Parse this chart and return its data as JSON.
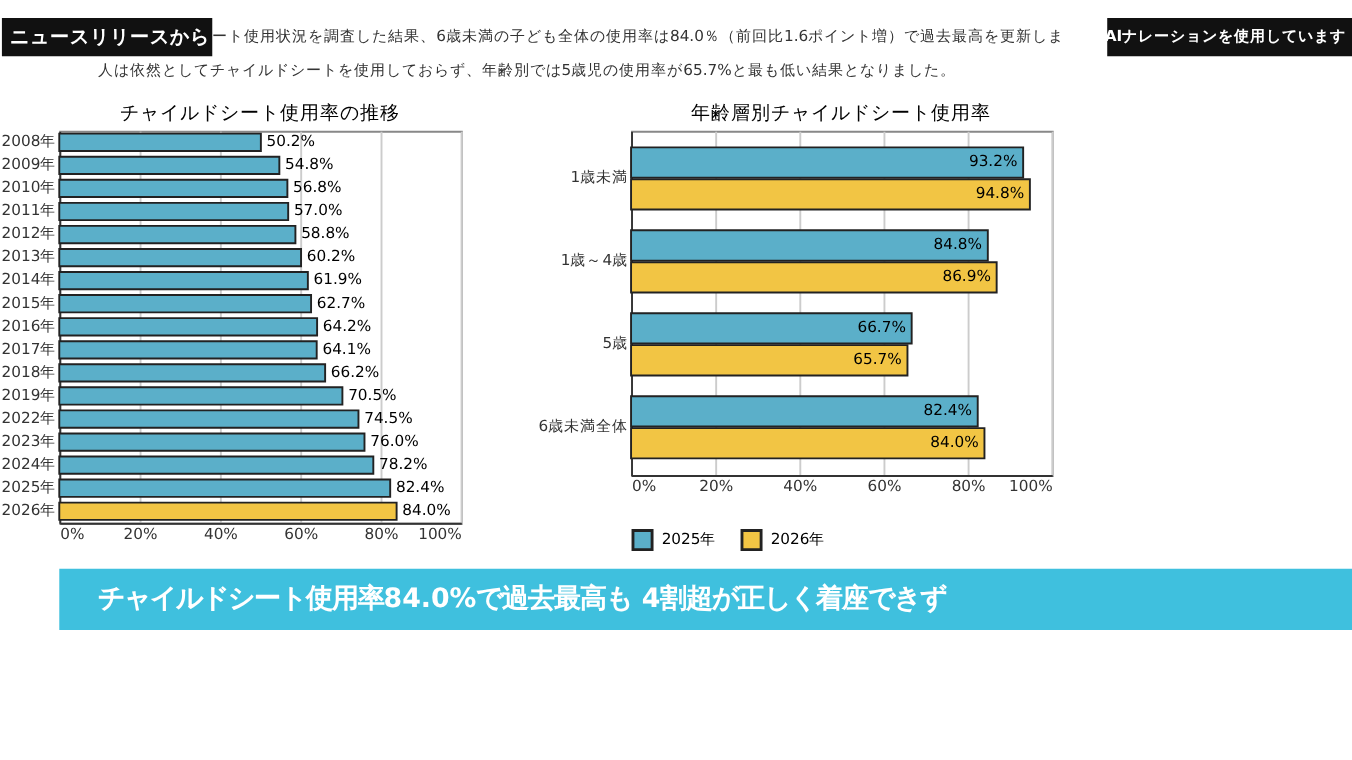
{
  "chart_data": [
    {
      "type": "bar",
      "orientation": "horizontal",
      "title": "チャイルドシート使用率の推移",
      "categories": [
        "2008年",
        "2009年",
        "2010年",
        "2011年",
        "2012年",
        "2013年",
        "2014年",
        "2015年",
        "2016年",
        "2017年",
        "2018年",
        "2019年",
        "2022年",
        "2023年",
        "2024年",
        "2025年",
        "2026年"
      ],
      "values": [
        50.2,
        54.8,
        56.8,
        57.0,
        58.8,
        60.2,
        61.9,
        62.7,
        64.2,
        64.1,
        66.2,
        70.5,
        74.5,
        76.0,
        78.2,
        82.4,
        84.0
      ],
      "colors": [
        "#5bafc9",
        "#5bafc9",
        "#5bafc9",
        "#5bafc9",
        "#5bafc9",
        "#5bafc9",
        "#5bafc9",
        "#5bafc9",
        "#5bafc9",
        "#5bafc9",
        "#5bafc9",
        "#5bafc9",
        "#5bafc9",
        "#5bafc9",
        "#5bafc9",
        "#5bafc9",
        "#f2c544"
      ],
      "value_labels": [
        "50.2%",
        "54.8%",
        "56.8%",
        "57.0%",
        "58.8%",
        "60.2%",
        "61.9%",
        "62.7%",
        "64.2%",
        "64.1%",
        "66.2%",
        "70.5%",
        "74.5%",
        "76.0%",
        "78.2%",
        "82.4%",
        "84.0%"
      ],
      "xlim": [
        0,
        100
      ],
      "xticks": [
        {
          "value": 0,
          "label": "0%"
        },
        {
          "value": 20,
          "label": "20%"
        },
        {
          "value": 40,
          "label": "40%"
        },
        {
          "value": 60,
          "label": "60%"
        },
        {
          "value": 80,
          "label": "80%"
        },
        {
          "value": 100,
          "label": "100%"
        }
      ],
      "grid": "x",
      "annotations": [
        "ニュースリリースから",
        "ート使用状況を調査した結果、6歳未満の子ども全体の使用率は84.0％（前回比1.6ポイント増）で過去最高を更新しま",
        "人は依然としてチャイルドシートを使用しておらず、年齢別では5歳児の使用率が65.7%と最も低い結果となりました。",
        "AIナレーションを使用しています",
        "チャイルドシート使用率84.0%で過去最高も  4割超が正しく着座できず"
      ]
    },
    {
      "type": "bar",
      "orientation": "horizontal",
      "title": "年齢層別チャイルドシート使用率",
      "categories": [
        "1歳未満",
        "1歳～4歳",
        "5歳",
        "6歳未満全体"
      ],
      "series": [
        {
          "name": "2025年",
          "color": "#5bafc9",
          "values": [
            93.2,
            84.8,
            66.7,
            82.4
          ],
          "value_labels": [
            "93.2%",
            "84.8%",
            "66.7%",
            "82.4%"
          ]
        },
        {
          "name": "2026年",
          "color": "#f2c544",
          "values": [
            94.8,
            86.9,
            65.7,
            84.0
          ],
          "value_labels": [
            "94.8%",
            "86.9%",
            "65.7%",
            "84.0%"
          ]
        }
      ],
      "xlim": [
        0,
        100
      ],
      "xticks": [
        {
          "value": 0,
          "label": "0%"
        },
        {
          "value": 20,
          "label": "20%"
        },
        {
          "value": 40,
          "label": "40%"
        },
        {
          "value": 60,
          "label": "60%"
        },
        {
          "value": 80,
          "label": "80%"
        },
        {
          "value": 100,
          "label": "100%"
        }
      ],
      "grid": "x",
      "legend": "bottom"
    }
  ]
}
